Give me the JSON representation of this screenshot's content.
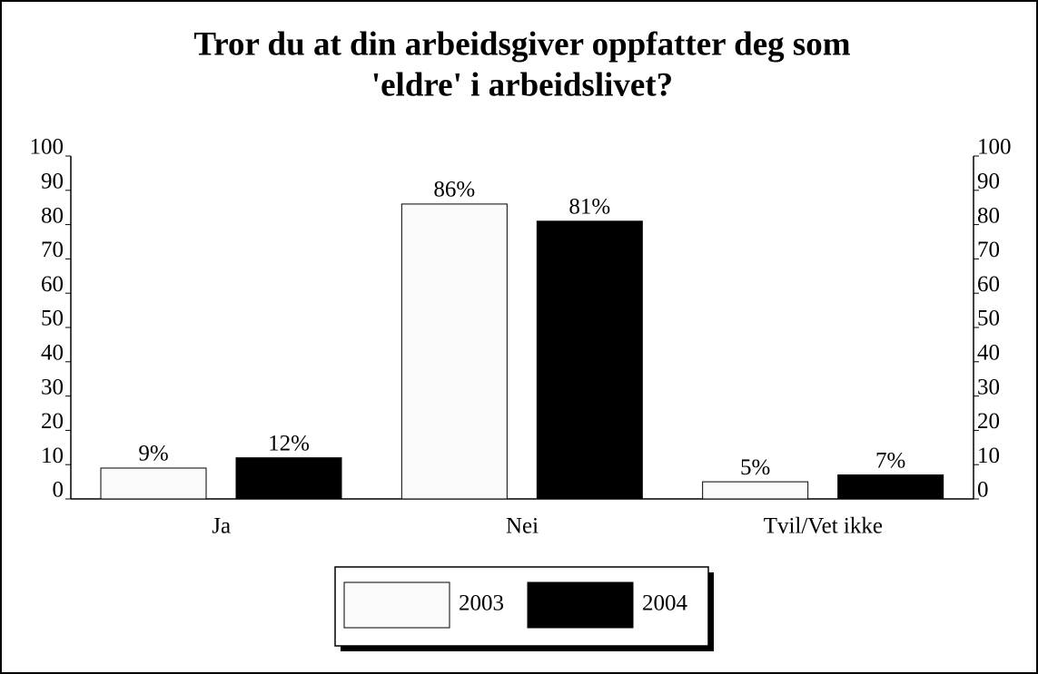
{
  "chart_data": {
    "type": "bar",
    "title": [
      "Tror du at din arbeidsgiver oppfatter deg som",
      "'eldre' i arbeidslivet?"
    ],
    "categories": [
      "Ja",
      "Nei",
      "Tvil/Vet ikke"
    ],
    "series": [
      {
        "name": "2003",
        "color": "#fafafa",
        "values": [
          9,
          86,
          5
        ],
        "value_labels": [
          "9%",
          "86%",
          "5%"
        ]
      },
      {
        "name": "2004",
        "color": "#000000",
        "values": [
          12,
          81,
          7
        ],
        "value_labels": [
          "12%",
          "81%",
          "7%"
        ]
      }
    ],
    "ylim": [
      0,
      100
    ],
    "yticks": [
      0,
      10,
      20,
      30,
      40,
      50,
      60,
      70,
      80,
      90,
      100
    ],
    "y2lim": [
      0,
      100
    ],
    "y2ticks": [
      0,
      10,
      20,
      30,
      40,
      50,
      60,
      70,
      80,
      90,
      100
    ],
    "grid": false,
    "legend": "bottom"
  }
}
